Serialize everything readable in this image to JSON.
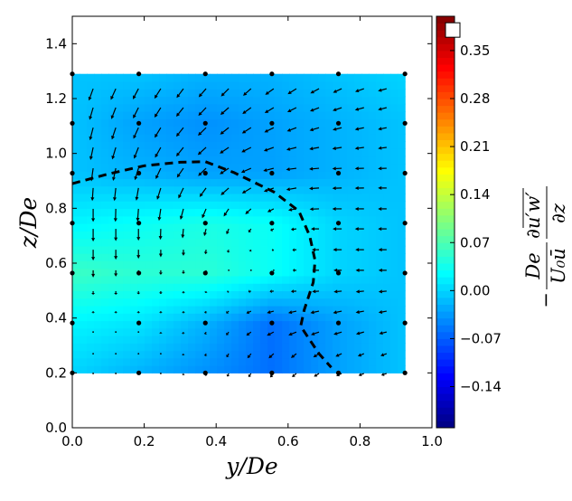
{
  "chart_data": {
    "type": "contour+quiver",
    "xlabel": "y/De",
    "ylabel": "z/De",
    "xlim": [
      0.0,
      1.0
    ],
    "ylim": [
      0.0,
      1.5
    ],
    "xticks": [
      "0.0",
      "0.2",
      "0.4",
      "0.6",
      "0.8",
      "1.0"
    ],
    "yticks": [
      "0.0",
      "0.2",
      "0.4",
      "0.6",
      "0.8",
      "1.0",
      "1.2",
      "1.4"
    ],
    "colormap": "jet",
    "clim": [
      -0.2,
      0.4
    ],
    "colorbar": {
      "ticks": [
        "0.35",
        "0.28",
        "0.21",
        "0.14",
        "0.07",
        "0.00",
        "−0.07",
        "−0.14"
      ],
      "label": {
        "sign": "−",
        "frac1_num": "De",
        "frac1_den": "U₀ū",
        "frac2_num": "∂u′w′",
        "frac2_den": "∂z"
      },
      "marker_value": 0.38
    },
    "contour": {
      "y": [
        0,
        0.185,
        0.37,
        0.555,
        0.74,
        0.925
      ],
      "z": [
        0.2,
        0.382,
        0.564,
        0.746,
        0.928,
        1.11,
        1.29
      ],
      "values": [
        [
          0.0,
          -0.02,
          -0.04,
          -0.06,
          -0.03,
          -0.01
        ],
        [
          0.02,
          0.01,
          -0.02,
          -0.06,
          -0.03,
          -0.01
        ],
        [
          0.06,
          0.05,
          0.05,
          0.03,
          0.0,
          -0.01
        ],
        [
          0.02,
          0.03,
          0.04,
          0.03,
          0.0,
          -0.01
        ],
        [
          -0.01,
          -0.02,
          -0.03,
          -0.03,
          -0.02,
          -0.01
        ],
        [
          -0.01,
          -0.03,
          -0.04,
          -0.03,
          -0.02,
          -0.01
        ],
        [
          -0.01,
          -0.01,
          -0.02,
          -0.02,
          -0.01,
          0.0
        ]
      ]
    },
    "measurement_points": {
      "y": [
        0,
        0.185,
        0.37,
        0.555,
        0.74,
        0.925
      ],
      "z": [
        0.2,
        0.382,
        0.564,
        0.746,
        0.928,
        1.11,
        1.29
      ]
    },
    "quiver": {
      "y": [
        0.058,
        0.121,
        0.184,
        0.246,
        0.309,
        0.372,
        0.435,
        0.497,
        0.56,
        0.623,
        0.686,
        0.749,
        0.811,
        0.874
      ],
      "z": [
        1.236,
        1.167,
        1.094,
        1.022,
        0.946,
        0.874,
        0.798,
        0.725,
        0.649,
        0.574,
        0.498,
        0.425,
        0.349,
        0.27,
        0.198
      ],
      "u": [
        [
          -0.24,
          -0.28,
          -0.31,
          -0.35,
          -0.38,
          -0.41,
          -0.43,
          -0.44,
          -0.47,
          -0.48,
          -0.48,
          -0.48,
          -0.49,
          -0.48
        ],
        [
          -0.2,
          -0.25,
          -0.3,
          -0.35,
          -0.4,
          -0.43,
          -0.46,
          -0.48,
          -0.5,
          -0.5,
          -0.5,
          -0.5,
          -0.5,
          -0.48
        ],
        [
          -0.18,
          -0.22,
          -0.28,
          -0.34,
          -0.4,
          -0.45,
          -0.48,
          -0.5,
          -0.52,
          -0.52,
          -0.52,
          -0.5,
          -0.5,
          -0.48
        ],
        [
          -0.15,
          -0.2,
          -0.25,
          -0.32,
          -0.4,
          -0.46,
          -0.5,
          -0.53,
          -0.55,
          -0.55,
          -0.54,
          -0.52,
          -0.5,
          -0.48
        ],
        [
          -0.1,
          -0.15,
          -0.2,
          -0.28,
          -0.36,
          -0.44,
          -0.5,
          -0.55,
          -0.58,
          -0.57,
          -0.55,
          -0.52,
          -0.5,
          -0.48
        ],
        [
          -0.05,
          -0.08,
          -0.12,
          -0.2,
          -0.28,
          -0.36,
          -0.44,
          -0.5,
          -0.55,
          -0.56,
          -0.55,
          -0.52,
          -0.5,
          -0.48
        ],
        [
          0,
          -0.02,
          -0.05,
          -0.1,
          -0.16,
          -0.22,
          -0.28,
          -0.32,
          -0.35,
          -0.45,
          -0.52,
          -0.52,
          -0.5,
          -0.48
        ],
        [
          0,
          0,
          0,
          -0.02,
          -0.05,
          -0.1,
          -0.12,
          -0.14,
          -0.18,
          -0.3,
          -0.45,
          -0.5,
          -0.5,
          -0.48
        ],
        [
          0,
          0,
          0,
          0,
          0,
          -0.03,
          -0.05,
          -0.06,
          -0.1,
          -0.22,
          -0.4,
          -0.48,
          -0.48,
          -0.46
        ],
        [
          0,
          0,
          0,
          0,
          0,
          0,
          -0.02,
          -0.03,
          -0.08,
          -0.2,
          -0.38,
          -0.45,
          -0.46,
          -0.45
        ],
        [
          0,
          0,
          0,
          0,
          0,
          -0.02,
          -0.08,
          -0.15,
          -0.22,
          -0.3,
          -0.38,
          -0.44,
          -0.45,
          -0.45
        ],
        [
          0,
          0,
          0,
          0,
          0,
          -0.05,
          -0.14,
          -0.26,
          -0.38,
          -0.45,
          -0.48,
          -0.48,
          -0.46,
          -0.45
        ],
        [
          0,
          0,
          0,
          0,
          -0.02,
          -0.06,
          -0.14,
          -0.26,
          -0.38,
          -0.44,
          -0.45,
          -0.45,
          -0.44,
          -0.42
        ],
        [
          0,
          0,
          0,
          0,
          -0.02,
          -0.05,
          -0.12,
          -0.2,
          -0.28,
          -0.3,
          -0.32,
          -0.34,
          -0.34,
          -0.34
        ],
        [
          0,
          0,
          0,
          0,
          -0.01,
          -0.03,
          -0.08,
          -0.14,
          -0.2,
          -0.24,
          -0.28,
          -0.3,
          -0.3,
          -0.3
        ]
      ],
      "w": [
        [
          -0.66,
          -0.62,
          -0.59,
          -0.55,
          -0.51,
          -0.47,
          -0.43,
          -0.39,
          -0.34,
          -0.3,
          -0.26,
          -0.22,
          -0.17,
          -0.13
        ],
        [
          -0.68,
          -0.64,
          -0.6,
          -0.55,
          -0.5,
          -0.45,
          -0.4,
          -0.35,
          -0.3,
          -0.25,
          -0.2,
          -0.17,
          -0.14,
          -0.12
        ],
        [
          -0.7,
          -0.66,
          -0.62,
          -0.56,
          -0.5,
          -0.44,
          -0.38,
          -0.32,
          -0.26,
          -0.2,
          -0.16,
          -0.13,
          -0.11,
          -0.1
        ],
        [
          -0.7,
          -0.67,
          -0.63,
          -0.57,
          -0.5,
          -0.42,
          -0.34,
          -0.27,
          -0.2,
          -0.14,
          -0.1,
          -0.08,
          -0.07,
          -0.06
        ],
        [
          -0.72,
          -0.7,
          -0.66,
          -0.6,
          -0.52,
          -0.43,
          -0.33,
          -0.24,
          -0.15,
          -0.08,
          -0.05,
          -0.03,
          -0.02,
          -0.02
        ],
        [
          -0.72,
          -0.72,
          -0.7,
          -0.65,
          -0.58,
          -0.5,
          -0.4,
          -0.3,
          -0.2,
          -0.1,
          -0.04,
          -0.02,
          -0.01,
          0
        ],
        [
          -0.72,
          -0.72,
          -0.7,
          -0.66,
          -0.6,
          -0.52,
          -0.42,
          -0.3,
          -0.18,
          -0.08,
          -0.02,
          0,
          0,
          0
        ],
        [
          -0.7,
          -0.68,
          -0.65,
          -0.6,
          -0.52,
          -0.4,
          -0.3,
          -0.2,
          -0.1,
          -0.04,
          0,
          0,
          0,
          0
        ],
        [
          -0.6,
          -0.55,
          -0.5,
          -0.42,
          -0.34,
          -0.25,
          -0.16,
          -0.1,
          -0.04,
          -0.02,
          0,
          0,
          0,
          0
        ],
        [
          -0.4,
          -0.35,
          -0.3,
          -0.25,
          -0.2,
          -0.15,
          -0.08,
          -0.04,
          -0.02,
          0,
          0,
          0,
          0,
          0
        ],
        [
          -0.2,
          -0.2,
          -0.18,
          -0.16,
          -0.13,
          -0.1,
          -0.06,
          -0.03,
          -0.02,
          -0.02,
          -0.03,
          -0.04,
          -0.04,
          -0.04
        ],
        [
          -0.12,
          -0.12,
          -0.12,
          -0.12,
          -0.12,
          -0.12,
          -0.12,
          -0.12,
          -0.1,
          -0.1,
          -0.1,
          -0.1,
          -0.08,
          -0.08
        ],
        [
          -0.08,
          -0.08,
          -0.08,
          -0.1,
          -0.12,
          -0.14,
          -0.18,
          -0.2,
          -0.2,
          -0.18,
          -0.16,
          -0.14,
          -0.12,
          -0.1
        ],
        [
          -0.06,
          -0.06,
          -0.07,
          -0.08,
          -0.1,
          -0.14,
          -0.2,
          -0.25,
          -0.26,
          -0.24,
          -0.2,
          -0.16,
          -0.14,
          -0.12
        ],
        [
          -0.06,
          -0.06,
          -0.07,
          -0.08,
          -0.1,
          -0.14,
          -0.18,
          -0.2,
          -0.22,
          -0.2,
          -0.18,
          -0.14,
          -0.12,
          -0.1
        ]
      ]
    },
    "boundary_dashed": {
      "y": [
        0.0,
        0.1,
        0.2,
        0.3,
        0.37,
        0.45,
        0.56,
        0.63,
        0.66,
        0.675,
        0.67,
        0.645,
        0.635,
        0.686,
        0.72
      ],
      "z": [
        0.89,
        0.925,
        0.955,
        0.968,
        0.97,
        0.93,
        0.86,
        0.79,
        0.7,
        0.61,
        0.53,
        0.43,
        0.37,
        0.27,
        0.22
      ]
    },
    "grid": false
  }
}
